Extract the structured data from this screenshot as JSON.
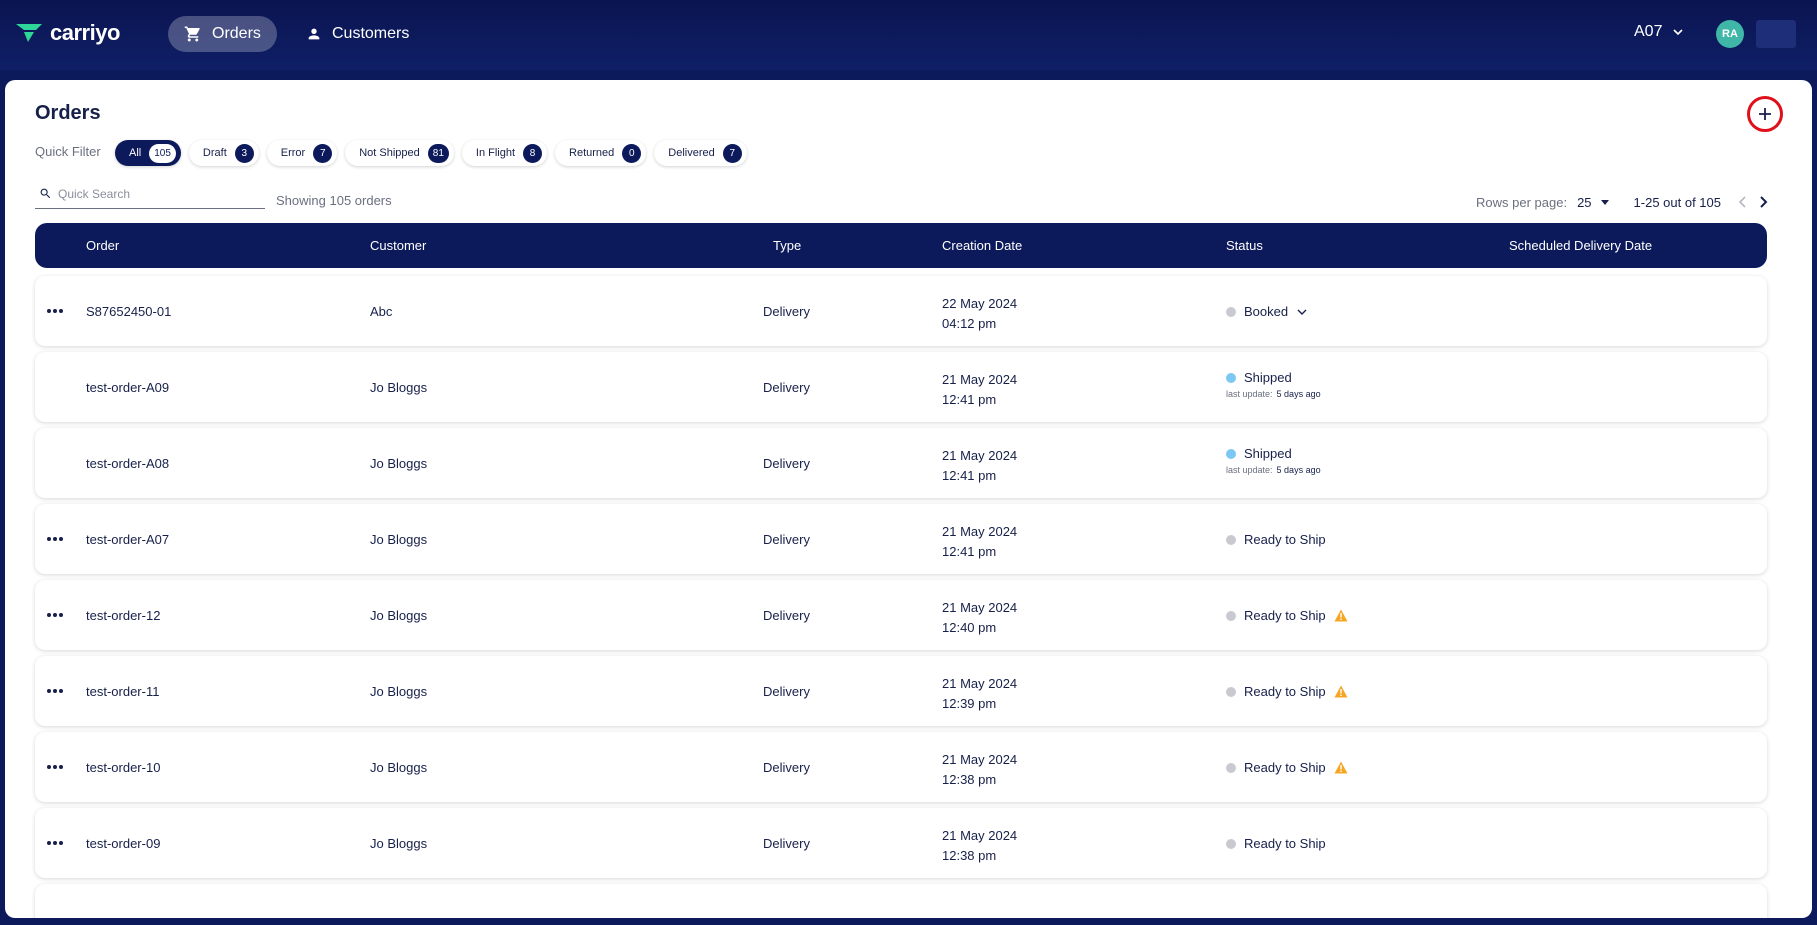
{
  "brand": {
    "name": "carriyo"
  },
  "nav": {
    "orders": "Orders",
    "customers": "Customers"
  },
  "account": {
    "code": "A07",
    "initials": "RA"
  },
  "page": {
    "title": "Orders"
  },
  "quick_filter": {
    "label": "Quick Filter",
    "chips": [
      {
        "label": "All",
        "count": "105",
        "active": true
      },
      {
        "label": "Draft",
        "count": "3"
      },
      {
        "label": "Error",
        "count": "7"
      },
      {
        "label": "Not Shipped",
        "count": "81"
      },
      {
        "label": "In Flight",
        "count": "8"
      },
      {
        "label": "Returned",
        "count": "0"
      },
      {
        "label": "Delivered",
        "count": "7"
      }
    ]
  },
  "search": {
    "placeholder": "Quick Search",
    "showing": "Showing 105 orders"
  },
  "pagination": {
    "rows_label": "Rows per page:",
    "rows_value": "25",
    "range": "1-25 out of 105"
  },
  "table": {
    "headers": {
      "order": "Order",
      "customer": "Customer",
      "type": "Type",
      "creation_date": "Creation Date",
      "status": "Status",
      "scheduled": "Scheduled Delivery Date"
    },
    "rows": [
      {
        "order": "S87652450-01",
        "customer": "Abc",
        "type": "Delivery",
        "date": "22 May 2024",
        "time": "04:12 pm",
        "status": "Booked"
      },
      {
        "order": "test-order-A09",
        "customer": "Jo Bloggs",
        "type": "Delivery",
        "date": "21 May 2024",
        "time": "12:41 pm",
        "status": "Shipped",
        "last_update_label": "last update:",
        "last_update": "5 days ago"
      },
      {
        "order": "test-order-A08",
        "customer": "Jo Bloggs",
        "type": "Delivery",
        "date": "21 May 2024",
        "time": "12:41 pm",
        "status": "Shipped",
        "last_update_label": "last update:",
        "last_update": "5 days ago"
      },
      {
        "order": "test-order-A07",
        "customer": "Jo Bloggs",
        "type": "Delivery",
        "date": "21 May 2024",
        "time": "12:41 pm",
        "status": "Ready to Ship"
      },
      {
        "order": "test-order-12",
        "customer": "Jo Bloggs",
        "type": "Delivery",
        "date": "21 May 2024",
        "time": "12:40 pm",
        "status": "Ready to Ship"
      },
      {
        "order": "test-order-11",
        "customer": "Jo Bloggs",
        "type": "Delivery",
        "date": "21 May 2024",
        "time": "12:39 pm",
        "status": "Ready to Ship"
      },
      {
        "order": "test-order-10",
        "customer": "Jo Bloggs",
        "type": "Delivery",
        "date": "21 May 2024",
        "time": "12:38 pm",
        "status": "Ready to Ship"
      },
      {
        "order": "test-order-09",
        "customer": "Jo Bloggs",
        "type": "Delivery",
        "date": "21 May 2024",
        "time": "12:38 pm",
        "status": "Ready to Ship"
      }
    ]
  },
  "colors": {
    "navy": "#0c1a5c",
    "shipped": "#7cc8f2",
    "neutral_dot": "#c8cad0",
    "warning": "#f5a623",
    "highlight": "#e0101a"
  }
}
